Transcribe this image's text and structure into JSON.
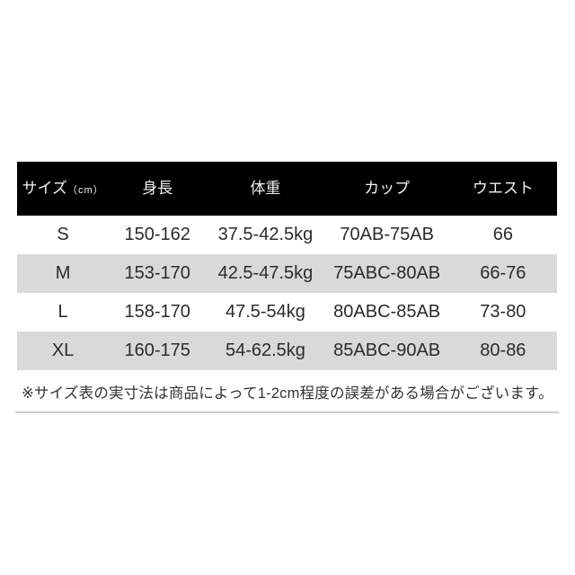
{
  "table": {
    "columns": [
      {
        "label": "サイズ",
        "unit": "（cm）"
      },
      {
        "label": "身長"
      },
      {
        "label": "体重"
      },
      {
        "label": "カップ"
      },
      {
        "label": "ウエスト"
      }
    ],
    "rows": [
      {
        "size": "S",
        "height": "150-162",
        "weight": "37.5-42.5kg",
        "cup": "70AB-75AB",
        "waist": "66"
      },
      {
        "size": "M",
        "height": "153-170",
        "weight": "42.5-47.5kg",
        "cup": "75ABC-80AB",
        "waist": "66-76"
      },
      {
        "size": "L",
        "height": "158-170",
        "weight": "47.5-54kg",
        "cup": "80ABC-85AB",
        "waist": "73-80"
      },
      {
        "size": "XL",
        "height": "160-175",
        "weight": "54-62.5kg",
        "cup": "85ABC-90AB",
        "waist": "80-86"
      }
    ]
  },
  "note": "※サイズ表の実寸法は商品によって1-2cm程度の誤差がある場合がございます。",
  "colors": {
    "page_bg": "#ffffff",
    "header_bg": "#000000",
    "header_text": "#f2f2f2",
    "row_bg": "#ffffff",
    "row_alt_bg": "#d9d9d9",
    "body_text": "#2b2b2b",
    "note_text": "#333333",
    "divider": "#cbcbcb"
  },
  "chart_data": {
    "type": "table",
    "columns": [
      "サイズ（cm）",
      "身長",
      "体重",
      "カップ",
      "ウエスト"
    ],
    "rows": [
      [
        "S",
        "150-162",
        "37.5-42.5kg",
        "70AB-75AB",
        "66"
      ],
      [
        "M",
        "153-170",
        "42.5-47.5kg",
        "75ABC-80AB",
        "66-76"
      ],
      [
        "L",
        "158-170",
        "47.5-54kg",
        "80ABC-85AB",
        "73-80"
      ],
      [
        "XL",
        "160-175",
        "54-62.5kg",
        "85ABC-90AB",
        "80-86"
      ]
    ],
    "footnote": "※サイズ表の実寸法は商品によって1-2cm程度の誤差がある場合がございます。",
    "layout": {
      "header_style": "black-bar",
      "row_striping": "even-rows-gray",
      "grid": false
    }
  }
}
